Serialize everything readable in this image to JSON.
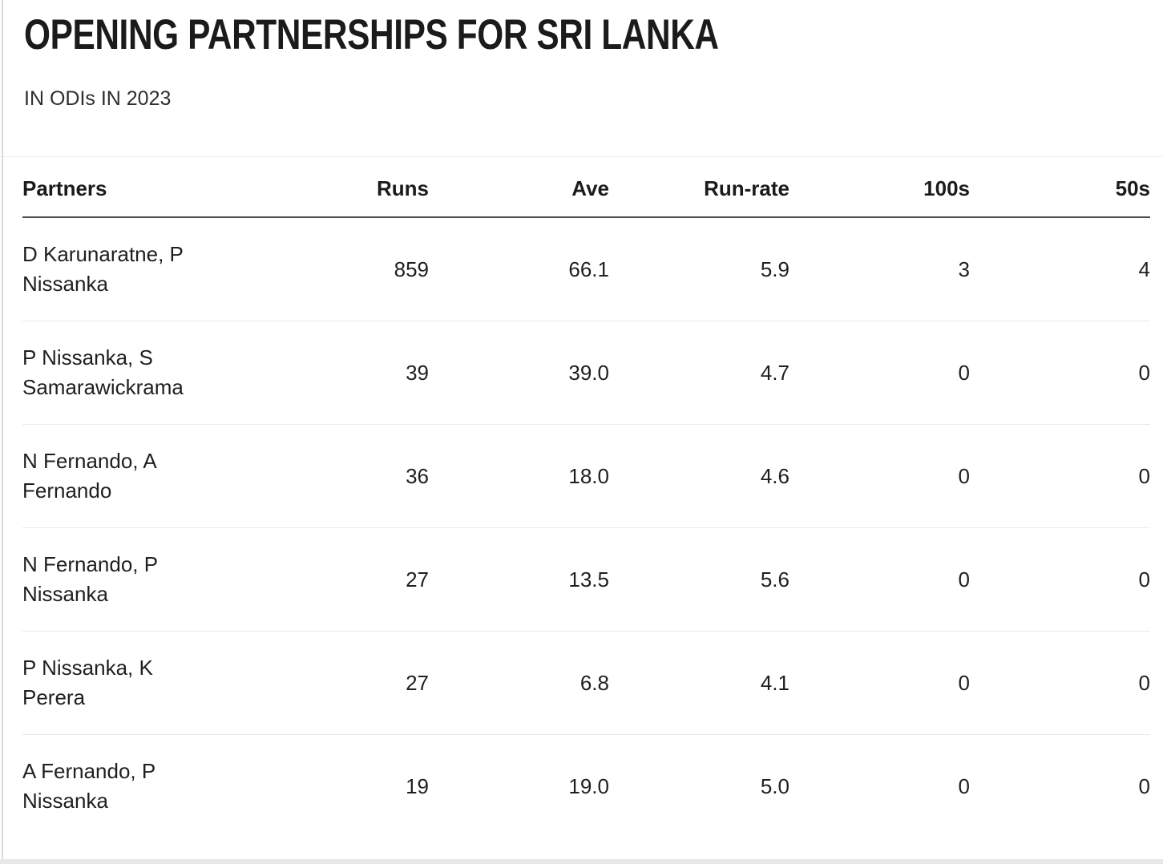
{
  "header": {
    "title": "OPENING PARTNERSHIPS FOR SRI LANKA",
    "subtitle": "IN ODIs IN 2023"
  },
  "table": {
    "columns": [
      "Partners",
      "Runs",
      "Ave",
      "Run-rate",
      "100s",
      "50s"
    ],
    "rows": [
      {
        "partners": "D Karunaratne, P Nissanka",
        "runs": "859",
        "ave": "66.1",
        "run_rate": "5.9",
        "hundreds": "3",
        "fifties": "4"
      },
      {
        "partners": "P Nissanka, S Samarawickrama",
        "runs": "39",
        "ave": "39.0",
        "run_rate": "4.7",
        "hundreds": "0",
        "fifties": "0"
      },
      {
        "partners": "N Fernando, A Fernando",
        "runs": "36",
        "ave": "18.0",
        "run_rate": "4.6",
        "hundreds": "0",
        "fifties": "0"
      },
      {
        "partners": "N Fernando, P Nissanka",
        "runs": "27",
        "ave": "13.5",
        "run_rate": "5.6",
        "hundreds": "0",
        "fifties": "0"
      },
      {
        "partners": "P Nissanka, K Perera",
        "runs": "27",
        "ave": "6.8",
        "run_rate": "4.1",
        "hundreds": "0",
        "fifties": "0"
      },
      {
        "partners": "A Fernando, P Nissanka",
        "runs": "19",
        "ave": "19.0",
        "run_rate": "5.0",
        "hundreds": "0",
        "fifties": "0"
      }
    ]
  },
  "chart_data": {
    "type": "table",
    "title": "OPENING PARTNERSHIPS FOR SRI LANKA",
    "subtitle": "IN ODIs IN 2023",
    "columns": [
      "Partners",
      "Runs",
      "Ave",
      "Run-rate",
      "100s",
      "50s"
    ],
    "rows": [
      [
        "D Karunaratne, P Nissanka",
        859,
        66.1,
        5.9,
        3,
        4
      ],
      [
        "P Nissanka, S Samarawickrama",
        39,
        39.0,
        4.7,
        0,
        0
      ],
      [
        "N Fernando, A Fernando",
        36,
        18.0,
        4.6,
        0,
        0
      ],
      [
        "N Fernando, P Nissanka",
        27,
        13.5,
        5.6,
        0,
        0
      ],
      [
        "P Nissanka, K Perera",
        27,
        6.8,
        4.1,
        0,
        0
      ],
      [
        "A Fernando, P Nissanka",
        19,
        19.0,
        5.0,
        0,
        0
      ]
    ]
  },
  "colors": {
    "title_text": "#1b1b1b",
    "body_text": "#1f1f1f",
    "header_rule": "#4d4d4d",
    "row_divider": "#e9e9e9",
    "page_left_edge": "#dbdcdf",
    "page_bottom_bar": "#e7e8ea"
  }
}
